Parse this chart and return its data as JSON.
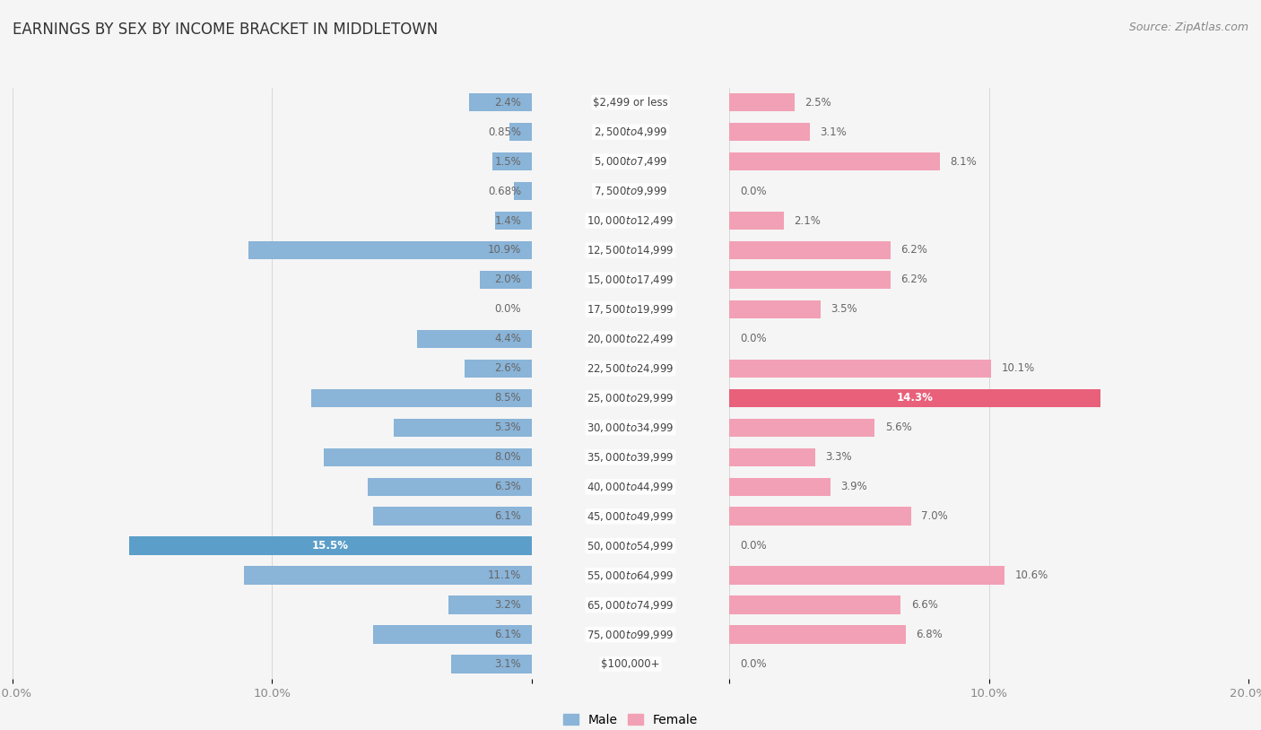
{
  "title": "EARNINGS BY SEX BY INCOME BRACKET IN MIDDLETOWN",
  "source": "Source: ZipAtlas.com",
  "categories": [
    "$2,499 or less",
    "$2,500 to $4,999",
    "$5,000 to $7,499",
    "$7,500 to $9,999",
    "$10,000 to $12,499",
    "$12,500 to $14,999",
    "$15,000 to $17,499",
    "$17,500 to $19,999",
    "$20,000 to $22,499",
    "$22,500 to $24,999",
    "$25,000 to $29,999",
    "$30,000 to $34,999",
    "$35,000 to $39,999",
    "$40,000 to $44,999",
    "$45,000 to $49,999",
    "$50,000 to $54,999",
    "$55,000 to $64,999",
    "$65,000 to $74,999",
    "$75,000 to $99,999",
    "$100,000+"
  ],
  "male": [
    2.4,
    0.85,
    1.5,
    0.68,
    1.4,
    10.9,
    2.0,
    0.0,
    4.4,
    2.6,
    8.5,
    5.3,
    8.0,
    6.3,
    6.1,
    15.5,
    11.1,
    3.2,
    6.1,
    3.1
  ],
  "female": [
    2.5,
    3.1,
    8.1,
    0.0,
    2.1,
    6.2,
    6.2,
    3.5,
    0.0,
    10.1,
    14.3,
    5.6,
    3.3,
    3.9,
    7.0,
    0.0,
    10.6,
    6.6,
    6.8,
    0.0
  ],
  "male_color": "#8ab4d8",
  "female_color": "#f2a0b5",
  "highlight_male_color": "#5b9ec9",
  "highlight_female_color": "#e8607a",
  "xlim": 20.0,
  "bar_height": 0.62,
  "row_bg_even": "#f0f0f0",
  "row_bg_odd": "#ffffff",
  "fig_bg": "#f5f5f5",
  "title_fontsize": 12,
  "label_fontsize": 8.5,
  "cat_fontsize": 8.5,
  "val_fontsize": 8.5,
  "axis_fontsize": 9.5
}
